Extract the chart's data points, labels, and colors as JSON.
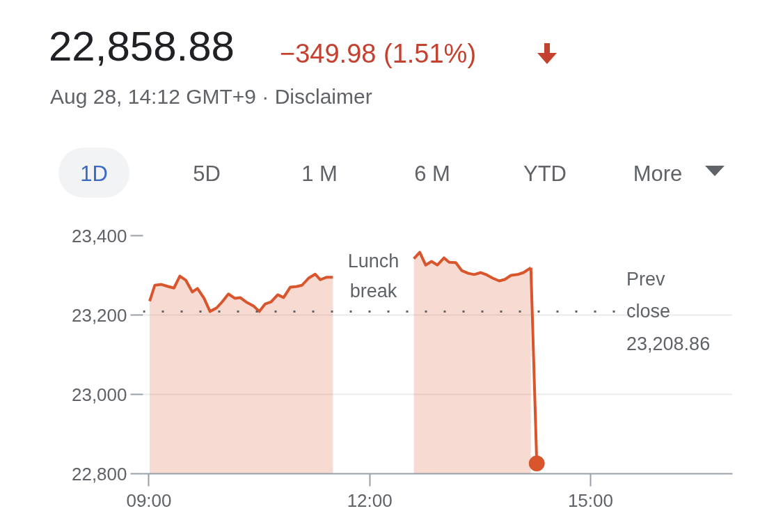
{
  "chart_data": {
    "type": "area",
    "title": "22,858.88",
    "subtitle": "Aug 28, 14:12 GMT+9 · Disclaimer",
    "annotations": [
      "−349.98 (1.51%)",
      "1D",
      "5D",
      "1 M",
      "6 M",
      "YTD",
      "More",
      "Lunch break"
    ],
    "series": [
      {
        "color": "#d9552c",
        "marker": "none",
        "x": [
          9.01,
          9.08,
          9.17,
          9.26,
          9.34,
          9.42,
          9.5,
          9.59,
          9.66,
          9.75,
          9.83,
          9.92,
          9.99,
          10.08,
          10.17,
          10.24,
          10.32,
          10.42,
          10.5,
          10.58,
          10.66,
          10.75,
          10.83,
          10.92,
          11.01,
          11.08,
          11.17,
          11.26,
          11.33,
          11.41,
          11.5,
          12.05,
          12.6,
          12.68,
          12.76,
          12.84,
          12.92,
          13.01,
          13.08,
          13.17,
          13.25,
          13.34,
          13.42,
          13.51,
          13.58,
          13.67,
          13.76,
          13.84,
          13.92,
          14.01,
          14.09,
          14.19
        ],
        "values": [
          23235,
          23275,
          23277,
          23272,
          23268,
          23298,
          23288,
          23258,
          23267,
          23242,
          23209,
          23218,
          23232,
          23253,
          23242,
          23244,
          23233,
          23223,
          23209,
          23228,
          23233,
          23251,
          23244,
          23270,
          23272,
          23275,
          23293,
          23303,
          23289,
          23295,
          23295,
          null,
          23342,
          23358,
          23326,
          23335,
          23326,
          23344,
          23333,
          23332,
          23312,
          23305,
          23302,
          23307,
          23302,
          23293,
          23286,
          23290,
          23300,
          23302,
          23307,
          23319
        ]
      },
      {
        "type": "line",
        "color": "#d9552c",
        "marker": "none",
        "x": [
          14.19,
          14.27
        ],
        "values": [
          23319,
          22826
        ]
      },
      {
        "type": "scatter",
        "color": "#d9552c",
        "marker": "circle",
        "x": [
          14.27
        ],
        "values": [
          22826
        ]
      }
    ],
    "ref_lines": [
      {
        "axis": "y",
        "value": 23208.86,
        "label": "Prev close 23,208.86",
        "color": "#5f6368",
        "line_style": "dotted"
      }
    ],
    "xlim": [
      8.92,
      16.93
    ],
    "ylim": [
      22800,
      23400
    ],
    "xticks": [
      {
        "value": 9,
        "label": "09:00"
      },
      {
        "value": 12,
        "label": "12:00"
      },
      {
        "value": 15,
        "label": "15:00"
      }
    ],
    "yticks": [
      {
        "value": 22800,
        "label": "22,800"
      },
      {
        "value": 23000,
        "label": "23,000"
      },
      {
        "value": 23200,
        "label": "23,200"
      },
      {
        "value": 23400,
        "label": "23,400"
      }
    ],
    "grid": "y",
    "line_style": "solid"
  }
}
